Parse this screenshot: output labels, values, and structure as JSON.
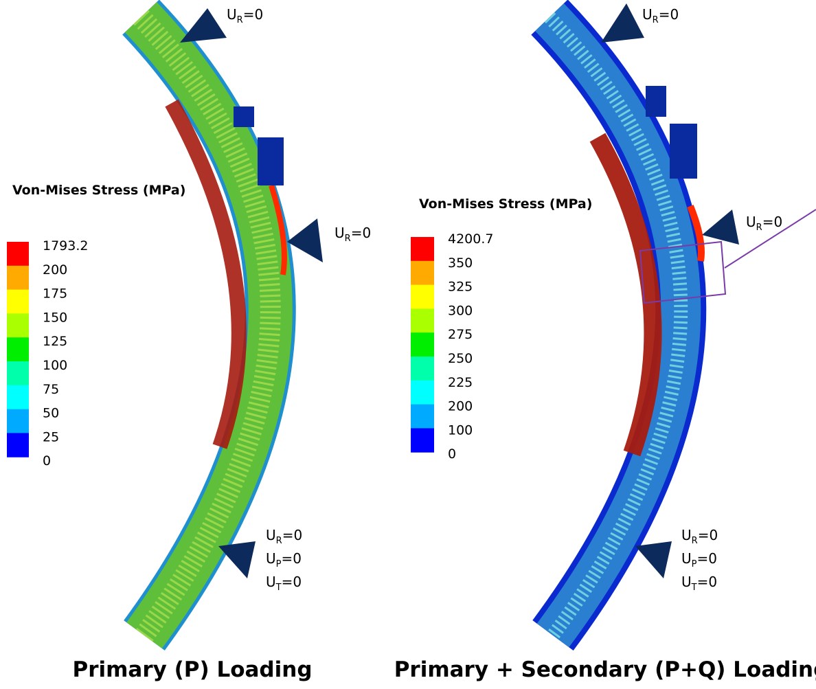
{
  "panels": [
    {
      "title": "Primary (P) Loading",
      "legend": {
        "title": "Von-Mises Stress (MPa)",
        "labels": [
          1793.2,
          200,
          175,
          150,
          125,
          100,
          75,
          50,
          25,
          0
        ],
        "colors": [
          "#ff0000",
          "#ffaa00",
          "#ffff00",
          "#aaff00",
          "#00ee00",
          "#00ffaa",
          "#00ffff",
          "#00aaff",
          "#0000ff"
        ]
      },
      "boundary_conditions": [
        [
          {
            "base": "U",
            "sub": "R",
            "rest": "=0"
          }
        ],
        [
          {
            "base": "U",
            "sub": "R",
            "rest": "=0"
          }
        ],
        [
          {
            "base": "U",
            "sub": "R",
            "rest": "=0"
          },
          {
            "base": "U",
            "sub": "P",
            "rest": "=0"
          },
          {
            "base": "U",
            "sub": "T",
            "rest": "=0"
          }
        ]
      ]
    },
    {
      "title": "Primary + Secondary (P+Q) Loading",
      "legend": {
        "title": "Von-Mises Stress (MPa)",
        "labels": [
          4200.7,
          350,
          325,
          300,
          275,
          250,
          225,
          200,
          100,
          0
        ],
        "colors": [
          "#ff0000",
          "#ffaa00",
          "#ffff00",
          "#aaff00",
          "#00ee00",
          "#00ffaa",
          "#00ffff",
          "#00aaff",
          "#0000ff"
        ]
      },
      "boundary_conditions": [
        [
          {
            "base": "U",
            "sub": "R",
            "rest": "=0"
          }
        ],
        [
          {
            "base": "U",
            "sub": "R",
            "rest": "=0"
          }
        ],
        [
          {
            "base": "U",
            "sub": "R",
            "rest": "=0"
          },
          {
            "base": "U",
            "sub": "P",
            "rest": "=0"
          },
          {
            "base": "U",
            "sub": "T",
            "rest": "=0"
          }
        ]
      ]
    }
  ]
}
